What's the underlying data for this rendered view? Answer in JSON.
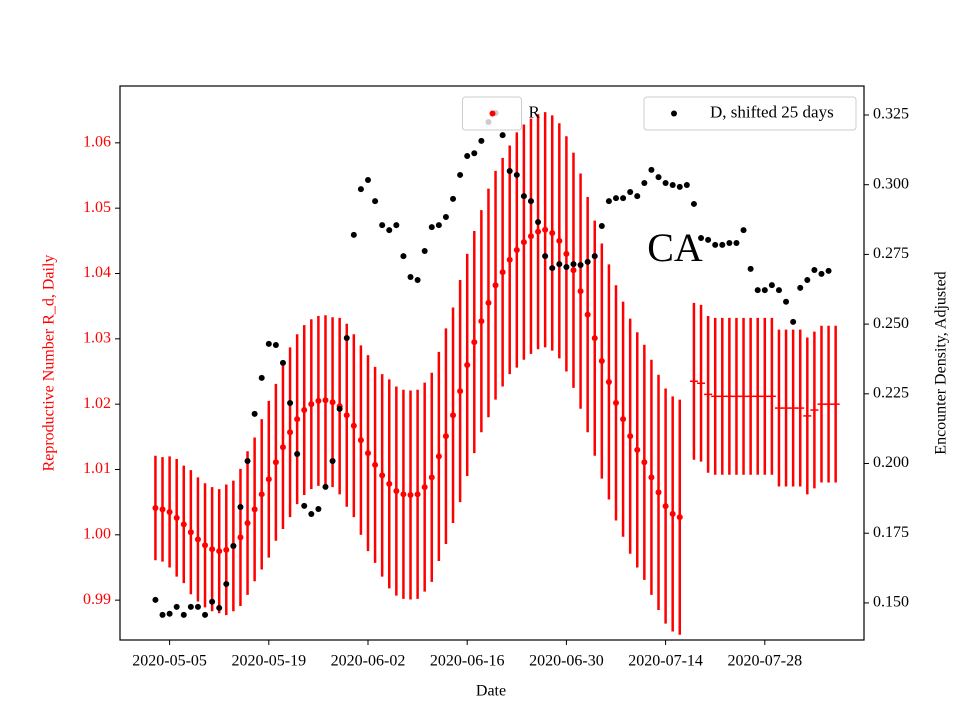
{
  "chart_data": {
    "type": "scatter",
    "annotation": "CA",
    "xlabel": "Date",
    "ylabel": "Reproductive Number R_d, Daily",
    "y2label": "Encounter Density, Adjusted",
    "xlim": [
      "2020-04-28",
      "2020-08-11"
    ],
    "xticks": [
      "2020-05-05",
      "2020-05-19",
      "2020-06-02",
      "2020-06-16",
      "2020-06-30",
      "2020-07-14",
      "2020-07-28"
    ],
    "ylim": [
      0.9839,
      1.0687
    ],
    "yticks": [
      0.99,
      {
        "value": 1,
        "label": "1.00"
      },
      1.01,
      1.02,
      1.03,
      1.04,
      1.05,
      1.06
    ],
    "y2lim": [
      0.1367,
      0.3354
    ],
    "y2ticks": [
      {
        "value": 0.15,
        "label": "0.150"
      },
      0.175,
      {
        "value": 0.2,
        "label": "0.200"
      },
      0.225,
      {
        "value": 0.25,
        "label": "0.250"
      },
      0.275,
      {
        "value": 0.3,
        "label": "0.300"
      },
      0.325
    ],
    "series": [
      {
        "name": "R",
        "color": "red",
        "marker": "o",
        "legend": "upper center",
        "x": [
          "2020-05-03",
          "2020-05-04",
          "2020-05-05",
          "2020-05-06",
          "2020-05-07",
          "2020-05-08",
          "2020-05-09",
          "2020-05-10",
          "2020-05-11",
          "2020-05-12",
          "2020-05-13",
          "2020-05-14",
          "2020-05-15",
          "2020-05-16",
          "2020-05-17",
          "2020-05-18",
          "2020-05-19",
          "2020-05-20",
          "2020-05-21",
          "2020-05-22",
          "2020-05-23",
          "2020-05-24",
          "2020-05-25",
          "2020-05-26",
          "2020-05-27",
          "2020-05-28",
          "2020-05-29",
          "2020-05-30",
          "2020-05-31",
          "2020-06-01",
          "2020-06-02",
          "2020-06-03",
          "2020-06-04",
          "2020-06-05",
          "2020-06-06",
          "2020-06-07",
          "2020-06-08",
          "2020-06-09",
          "2020-06-10",
          "2020-06-11",
          "2020-06-12",
          "2020-06-13",
          "2020-06-14",
          "2020-06-15",
          "2020-06-16",
          "2020-06-17",
          "2020-06-18",
          "2020-06-19",
          "2020-06-20",
          "2020-06-21",
          "2020-06-22",
          "2020-06-23",
          "2020-06-24",
          "2020-06-25",
          "2020-06-26",
          "2020-06-27",
          "2020-06-28",
          "2020-06-29",
          "2020-06-30",
          "2020-07-01",
          "2020-07-02",
          "2020-07-03",
          "2020-07-04",
          "2020-07-05",
          "2020-07-06",
          "2020-07-07",
          "2020-07-08",
          "2020-07-09",
          "2020-07-10",
          "2020-07-11",
          "2020-07-12",
          "2020-07-13",
          "2020-07-14",
          "2020-07-15",
          "2020-07-16"
        ],
        "values": [
          1.0041,
          1.0039,
          1.0035,
          1.0026,
          1.0016,
          1.0004,
          0.9993,
          0.9984,
          0.9978,
          0.9975,
          0.9977,
          0.9983,
          0.9996,
          1.0018,
          1.0039,
          1.0062,
          1.0085,
          1.0111,
          1.0134,
          1.0157,
          1.0177,
          1.0191,
          1.02,
          1.0205,
          1.0206,
          1.0203,
          1.0197,
          1.0183,
          1.0167,
          1.0145,
          1.0125,
          1.0107,
          1.0091,
          1.0078,
          1.0067,
          1.0062,
          1.0061,
          1.0062,
          1.0073,
          1.0088,
          1.012,
          1.0151,
          1.0183,
          1.022,
          1.026,
          1.0295,
          1.0327,
          1.0355,
          1.0382,
          1.0402,
          1.0421,
          1.0436,
          1.0448,
          1.0457,
          1.0464,
          1.0467,
          1.0462,
          1.045,
          1.043,
          1.0405,
          1.0373,
          1.0337,
          1.0301,
          1.0266,
          1.0234,
          1.0202,
          1.0177,
          1.0151,
          1.013,
          1.0111,
          1.0088,
          1.0065,
          1.0044,
          1.0032,
          1.0027
        ],
        "errors": [
          0.008,
          0.008,
          0.0085,
          0.009,
          0.009,
          0.0095,
          0.0095,
          0.0095,
          0.0095,
          0.0095,
          0.01,
          0.01,
          0.0105,
          0.011,
          0.011,
          0.0115,
          0.012,
          0.012,
          0.0125,
          0.013,
          0.013,
          0.013,
          0.013,
          0.013,
          0.013,
          0.013,
          0.0135,
          0.014,
          0.014,
          0.0145,
          0.015,
          0.015,
          0.0155,
          0.016,
          0.016,
          0.016,
          0.016,
          0.016,
          0.016,
          0.016,
          0.016,
          0.0165,
          0.0165,
          0.017,
          0.017,
          0.017,
          0.017,
          0.0175,
          0.0175,
          0.0175,
          0.0175,
          0.018,
          0.018,
          0.018,
          0.018,
          0.018,
          0.018,
          0.018,
          0.018,
          0.018,
          0.018,
          0.018,
          0.018,
          0.018,
          0.018,
          0.018,
          0.018,
          0.018,
          0.018,
          0.018,
          0.018,
          0.018,
          0.018,
          0.018,
          0.018
        ]
      },
      {
        "color": "red",
        "marker": "_",
        "x": [
          "2020-07-18",
          "2020-07-19",
          "2020-07-20",
          "2020-07-21",
          "2020-07-22",
          "2020-07-23",
          "2020-07-24",
          "2020-07-25",
          "2020-07-26",
          "2020-07-27",
          "2020-07-28",
          "2020-07-29",
          "2020-07-30",
          "2020-07-31",
          "2020-08-01",
          "2020-08-02",
          "2020-08-03",
          "2020-08-04",
          "2020-08-05",
          "2020-08-06",
          "2020-08-07"
        ],
        "values": [
          1.0235,
          1.0232,
          1.0215,
          1.0212,
          1.0212,
          1.0212,
          1.0212,
          1.0212,
          1.0212,
          1.0212,
          1.0212,
          1.0212,
          1.0194,
          1.0194,
          1.0194,
          1.0194,
          1.0182,
          1.0191,
          1.02,
          1.02,
          1.02
        ],
        "errors": [
          0.012,
          0.012,
          0.012,
          0.012,
          0.012,
          0.012,
          0.012,
          0.012,
          0.012,
          0.012,
          0.012,
          0.012,
          0.012,
          0.012,
          0.012,
          0.012,
          0.012,
          0.012,
          0.012,
          0.012,
          0.012
        ]
      },
      {
        "name": "D, shifted 25 days",
        "color": "black",
        "marker": "o",
        "axis": "y2",
        "legend": "upper right",
        "x": [
          "2020-05-03",
          "2020-05-04",
          "2020-05-05",
          "2020-05-06",
          "2020-05-07",
          "2020-05-08",
          "2020-05-09",
          "2020-05-10",
          "2020-05-11",
          "2020-05-12",
          "2020-05-13",
          "2020-05-14",
          "2020-05-15",
          "2020-05-16",
          "2020-05-17",
          "2020-05-18",
          "2020-05-19",
          "2020-05-20",
          "2020-05-21",
          "2020-05-22",
          "2020-05-23",
          "2020-05-24",
          "2020-05-25",
          "2020-05-26",
          "2020-05-27",
          "2020-05-28",
          "2020-05-29",
          "2020-05-30",
          "2020-05-31",
          "2020-06-01",
          "2020-06-02",
          "2020-06-03",
          "2020-06-04",
          "2020-06-05",
          "2020-06-06",
          "2020-06-07",
          "2020-06-08",
          "2020-06-09",
          "2020-06-10",
          "2020-06-11",
          "2020-06-12",
          "2020-06-13",
          "2020-06-14",
          "2020-06-15",
          "2020-06-16",
          "2020-06-17",
          "2020-06-18",
          "2020-06-19",
          "2020-06-20",
          "2020-06-21",
          "2020-06-22",
          "2020-06-23",
          "2020-06-24",
          "2020-06-25",
          "2020-06-26",
          "2020-06-27",
          "2020-06-28",
          "2020-06-29",
          "2020-06-30",
          "2020-07-01",
          "2020-07-02",
          "2020-07-03",
          "2020-07-04",
          "2020-07-05",
          "2020-07-06",
          "2020-07-07",
          "2020-07-08",
          "2020-07-09",
          "2020-07-10",
          "2020-07-11",
          "2020-07-12",
          "2020-07-13",
          "2020-07-14",
          "2020-07-15",
          "2020-07-16",
          "2020-07-17",
          "2020-07-18",
          "2020-07-19",
          "2020-07-20",
          "2020-07-21",
          "2020-07-22",
          "2020-07-23",
          "2020-07-24",
          "2020-07-25",
          "2020-07-26",
          "2020-07-27",
          "2020-07-28",
          "2020-07-29",
          "2020-07-30",
          "2020-07-31",
          "2020-08-01",
          "2020-08-02",
          "2020-08-03",
          "2020-08-04",
          "2020-08-05",
          "2020-08-06"
        ],
        "values": [
          0.1511,
          0.1457,
          0.1461,
          0.1486,
          0.1457,
          0.1486,
          0.1486,
          0.1457,
          0.1504,
          0.1482,
          0.1568,
          0.1704,
          0.1844,
          0.2009,
          0.2178,
          0.2307,
          0.2429,
          0.2425,
          0.2361,
          0.2217,
          0.2034,
          0.1848,
          0.1819,
          0.1837,
          0.1916,
          0.2009,
          0.2196,
          0.245,
          0.282,
          0.2984,
          0.3017,
          0.2941,
          0.2855,
          0.2837,
          0.2855,
          0.2744,
          0.2669,
          0.2658,
          0.2762,
          0.2848,
          0.2855,
          0.2884,
          0.2949,
          0.3035,
          0.3103,
          0.3113,
          0.3157,
          0.3225,
          0.3257,
          0.3178,
          0.3049,
          0.3035,
          0.2959,
          0.2941,
          0.2866,
          0.2744,
          0.2701,
          0.2715,
          0.2705,
          0.2715,
          0.2712,
          0.2723,
          0.2744,
          0.2852,
          0.2941,
          0.2952,
          0.2952,
          0.2974,
          0.2959,
          0.3006,
          0.3053,
          0.3027,
          0.3006,
          0.2999,
          0.2992,
          0.2999,
          0.2931,
          0.2809,
          0.2802,
          0.2784,
          0.2784,
          0.2791,
          0.2791,
          0.2837,
          0.2698,
          0.2622,
          0.2622,
          0.264,
          0.2622,
          0.258,
          0.2508,
          0.263,
          0.2658,
          0.2694,
          0.268,
          0.2691
        ]
      }
    ]
  }
}
